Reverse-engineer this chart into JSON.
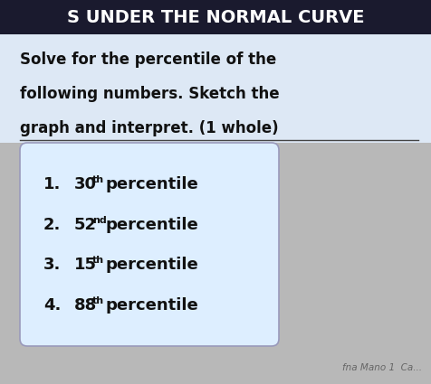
{
  "header_text": "S UNDER THE NORMAL CURVE",
  "header_bg": "#1a1a2e",
  "header_text_color": "#ffffff",
  "instruction_line1": "Solve for the percentile of the",
  "instruction_line2": "following numbers. Sketch the",
  "instruction_line3": "graph and interpret. (1 whole)",
  "instruction_bg": "#dde8f5",
  "instruction_text_color": "#111111",
  "lower_bg": "#b8b8b8",
  "box_bg": "#ddeeff",
  "box_border": "#9999bb",
  "items": [
    {
      "num": "1.",
      "value": "30",
      "sup": "th",
      "label": "percentile"
    },
    {
      "num": "2.",
      "value": "52",
      "sup": "nd",
      "label": "percentile"
    },
    {
      "num": "3.",
      "value": "15",
      "sup": "th",
      "label": "percentile"
    },
    {
      "num": "4.",
      "value": "88",
      "sup": "th",
      "label": "percentile"
    }
  ],
  "footer_text": "fna Mano 1  Ca...",
  "footer_color": "#666666",
  "header_font_size": 14,
  "instruction_font_size": 12,
  "item_font_size": 13,
  "sup_font_size": 8
}
